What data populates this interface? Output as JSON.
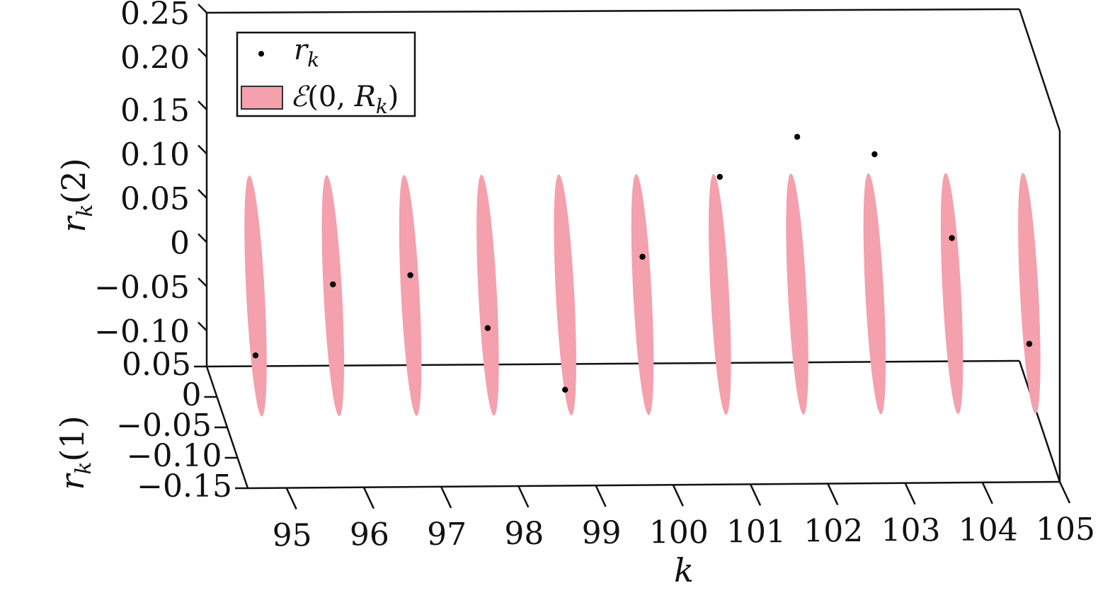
{
  "chart_data": {
    "type": "scatter",
    "projection": "3d",
    "xlabel": "k",
    "ylabel": "r_k(1)",
    "zlabel": "r_k(2)",
    "x_ticks": [
      95,
      96,
      97,
      98,
      99,
      100,
      101,
      102,
      103,
      104,
      105
    ],
    "y_ticks": [
      "0.05",
      "0",
      "−0.05",
      "−0.10",
      "−0.15"
    ],
    "z_ticks": [
      "0.25",
      "0.20",
      "0.15",
      "0.10",
      "0.05",
      "0",
      "−0.05",
      "−0.10"
    ],
    "xlim": [
      94.5,
      105
    ],
    "ylim": [
      -0.15,
      0.05
    ],
    "zlim": [
      -0.15,
      0.25
    ],
    "legend_position": "top-left",
    "series": [
      {
        "name": "r_k",
        "kind": "points",
        "color": "#000000",
        "points": [
          {
            "k": 95,
            "r1": 0.0,
            "r2": -0.08
          },
          {
            "k": 96,
            "r1": 0.0,
            "r2": 0.0
          },
          {
            "k": 97,
            "r1": 0.0,
            "r2": 0.01
          },
          {
            "k": 98,
            "r1": 0.0,
            "r2": -0.05
          },
          {
            "k": 99,
            "r1": 0.0,
            "r2": -0.12
          },
          {
            "k": 100,
            "r1": 0.0,
            "r2": 0.03
          },
          {
            "k": 101,
            "r1": 0.0,
            "r2": 0.12
          },
          {
            "k": 102,
            "r1": 0.0,
            "r2": 0.165
          },
          {
            "k": 103,
            "r1": 0.0,
            "r2": 0.145
          },
          {
            "k": 104,
            "r1": 0.0,
            "r2": 0.05
          },
          {
            "k": 105,
            "r1": 0.0,
            "r2": -0.07
          }
        ]
      },
      {
        "name": "E(0, R_k)",
        "kind": "ellipsoids",
        "color": "#f4a0ad",
        "k": [
          95,
          96,
          97,
          98,
          99,
          100,
          101,
          102,
          103,
          104,
          105
        ],
        "r2_half_extent": 0.11,
        "r1_half_extent": 0.02
      }
    ]
  }
}
